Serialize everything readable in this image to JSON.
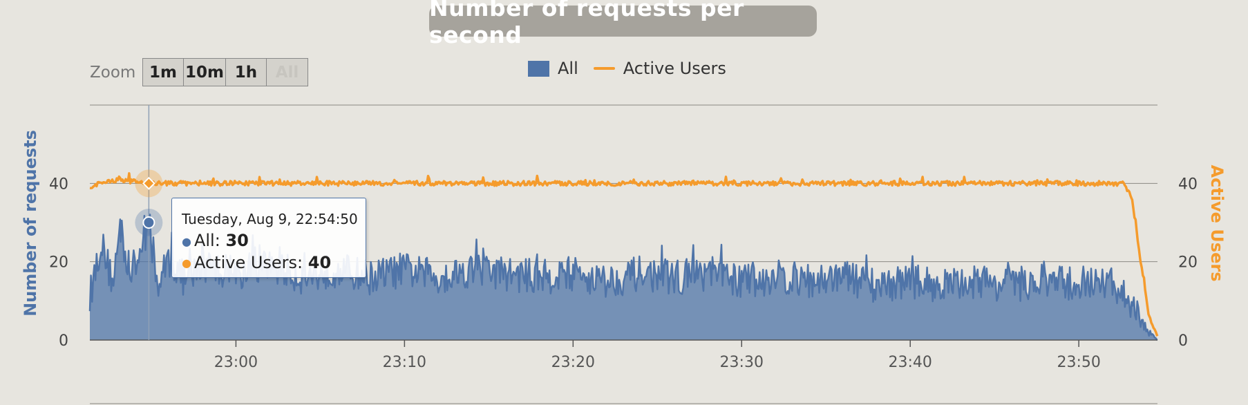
{
  "chart_data": {
    "type": "area",
    "title": "Number of requests per second",
    "x_ticks": [
      "23:00",
      "23:10",
      "23:20",
      "23:30",
      "23:40",
      "23:50"
    ],
    "x_range": [
      "22:51:20",
      "23:54:40"
    ],
    "ylim": [
      0,
      60
    ],
    "y_ticks": [
      0,
      20,
      40
    ],
    "ylabel": "Number of requests",
    "y2lim": [
      0,
      60
    ],
    "y2_ticks": [
      0,
      20,
      40
    ],
    "y2label": "Active Users",
    "grid": true,
    "legend_position": "top-center",
    "series": [
      {
        "name": "All",
        "type": "area",
        "color": "#4f74a8",
        "axis": "left",
        "points": [
          [
            "22:51:20",
            11
          ],
          [
            "22:52:00",
            25
          ],
          [
            "22:52:40",
            15
          ],
          [
            "22:53:10",
            28
          ],
          [
            "22:53:40",
            17
          ],
          [
            "22:54:10",
            20
          ],
          [
            "22:54:50",
            30
          ],
          [
            "22:55:20",
            13
          ],
          [
            "22:56:00",
            21
          ],
          [
            "22:57:00",
            15
          ],
          [
            "22:58:00",
            19
          ],
          [
            "23:00:00",
            17
          ],
          [
            "23:02:00",
            19
          ],
          [
            "23:04:00",
            16
          ],
          [
            "23:06:00",
            18
          ],
          [
            "23:08:00",
            16
          ],
          [
            "23:10:00",
            18
          ],
          [
            "23:12:00",
            16
          ],
          [
            "23:14:00",
            18
          ],
          [
            "23:16:00",
            17
          ],
          [
            "23:18:00",
            16
          ],
          [
            "23:20:00",
            17
          ],
          [
            "23:22:00",
            15
          ],
          [
            "23:24:00",
            17
          ],
          [
            "23:26:00",
            16
          ],
          [
            "23:28:00",
            17
          ],
          [
            "23:30:00",
            15
          ],
          [
            "23:32:00",
            16
          ],
          [
            "23:34:00",
            15
          ],
          [
            "23:36:00",
            16
          ],
          [
            "23:38:00",
            14
          ],
          [
            "23:40:00",
            15
          ],
          [
            "23:42:00",
            14
          ],
          [
            "23:44:00",
            15
          ],
          [
            "23:46:00",
            14
          ],
          [
            "23:48:00",
            15
          ],
          [
            "23:50:00",
            14
          ],
          [
            "23:52:00",
            14
          ],
          [
            "23:53:00",
            10
          ],
          [
            "23:53:40",
            5
          ],
          [
            "23:54:10",
            2
          ],
          [
            "23:54:40",
            0
          ]
        ]
      },
      {
        "name": "Active Users",
        "type": "line",
        "color": "#f59b2c",
        "axis": "right",
        "points": [
          [
            "22:51:20",
            39
          ],
          [
            "22:52:00",
            40
          ],
          [
            "22:53:00",
            41
          ],
          [
            "22:54:50",
            40
          ],
          [
            "22:56:00",
            40
          ],
          [
            "23:00:00",
            40
          ],
          [
            "23:10:00",
            40
          ],
          [
            "23:20:00",
            40
          ],
          [
            "23:30:00",
            40
          ],
          [
            "23:40:00",
            40
          ],
          [
            "23:50:00",
            40
          ],
          [
            "23:52:40",
            40
          ],
          [
            "23:53:10",
            36
          ],
          [
            "23:53:40",
            20
          ],
          [
            "23:54:10",
            6
          ],
          [
            "23:54:40",
            1
          ]
        ]
      }
    ]
  },
  "zoom": {
    "label": "Zoom",
    "buttons": [
      "1m",
      "10m",
      "1h",
      "All"
    ]
  },
  "tooltip": {
    "date": "Tuesday, Aug 9, 22:54:50",
    "rows": [
      {
        "label": "All:",
        "value": "30",
        "color": "#4f74a8"
      },
      {
        "label": "Active Users:",
        "value": "40",
        "color": "#f59b2c"
      }
    ]
  }
}
